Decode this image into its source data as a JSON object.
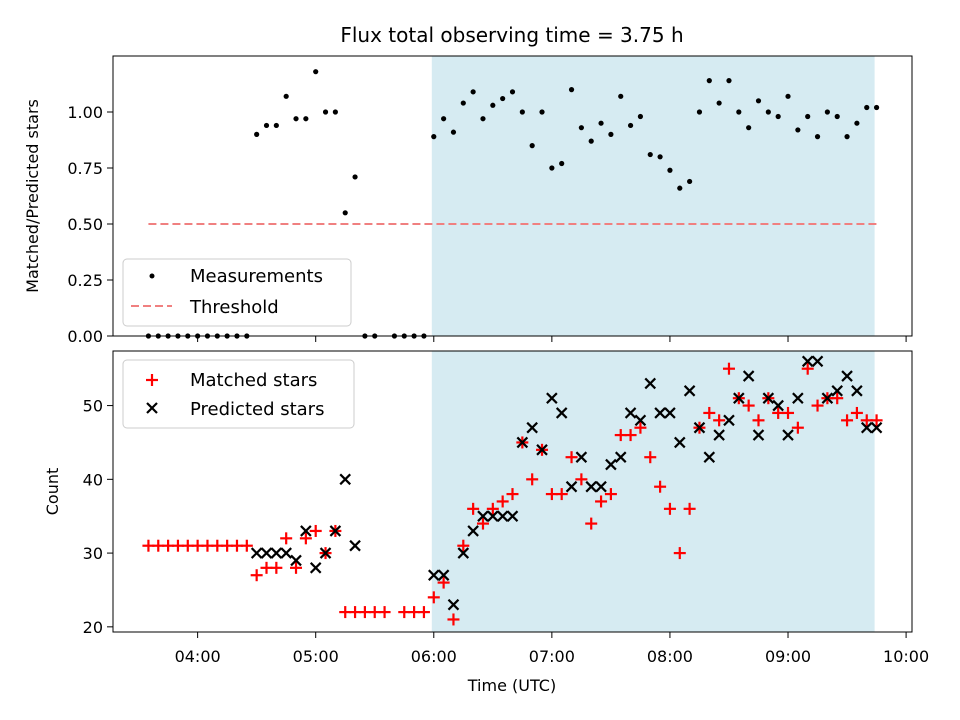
{
  "colors": {
    "measurement": "#000000",
    "threshold": "#f08080",
    "matched": "#ff0000",
    "predicted": "#000000",
    "shade": "#add8e6"
  },
  "chart_data": [
    {
      "type": "scatter",
      "title": "Flux total observing time = 3.75 h",
      "ylabel": "Matched/Predicted stars",
      "xlim": [
        "03:17",
        "10:03"
      ],
      "ylim": [
        0,
        1.25
      ],
      "yticks": [
        "0.00",
        "0.25",
        "0.50",
        "0.75",
        "1.00"
      ],
      "shaded_region": [
        "05:59",
        "09:44"
      ],
      "legend_position": "lower-left",
      "legend": [
        "Measurements",
        "Threshold"
      ],
      "threshold": {
        "value": 0.5,
        "x_range": [
          "03:35",
          "09:45"
        ]
      },
      "measurements": [
        [
          "03:35",
          0
        ],
        [
          "03:40",
          0
        ],
        [
          "03:45",
          0
        ],
        [
          "03:50",
          0
        ],
        [
          "03:55",
          0
        ],
        [
          "04:00",
          0
        ],
        [
          "04:05",
          0
        ],
        [
          "04:10",
          0
        ],
        [
          "04:15",
          0
        ],
        [
          "04:20",
          0
        ],
        [
          "04:25",
          0
        ],
        [
          "04:30",
          0.9
        ],
        [
          "04:35",
          0.94
        ],
        [
          "04:40",
          0.94
        ],
        [
          "04:45",
          1.07
        ],
        [
          "04:50",
          0.97
        ],
        [
          "04:55",
          0.97
        ],
        [
          "05:00",
          1.18
        ],
        [
          "05:05",
          1.0
        ],
        [
          "05:10",
          1.0
        ],
        [
          "05:15",
          0.55
        ],
        [
          "05:20",
          0.71
        ],
        [
          "05:25",
          0
        ],
        [
          "05:30",
          0
        ],
        [
          "05:40",
          0
        ],
        [
          "05:45",
          0
        ],
        [
          "05:50",
          0
        ],
        [
          "05:55",
          0
        ],
        [
          "06:00",
          0.89
        ],
        [
          "06:05",
          0.97
        ],
        [
          "06:10",
          0.91
        ],
        [
          "06:15",
          1.04
        ],
        [
          "06:20",
          1.09
        ],
        [
          "06:25",
          0.97
        ],
        [
          "06:30",
          1.03
        ],
        [
          "06:35",
          1.06
        ],
        [
          "06:40",
          1.09
        ],
        [
          "06:45",
          1.0
        ],
        [
          "06:50",
          0.85
        ],
        [
          "06:55",
          1.0
        ],
        [
          "07:00",
          0.75
        ],
        [
          "07:05",
          0.77
        ],
        [
          "07:10",
          1.1
        ],
        [
          "07:15",
          0.93
        ],
        [
          "07:20",
          0.87
        ],
        [
          "07:25",
          0.95
        ],
        [
          "07:30",
          0.9
        ],
        [
          "07:35",
          1.07
        ],
        [
          "07:40",
          0.94
        ],
        [
          "07:45",
          0.98
        ],
        [
          "07:50",
          0.81
        ],
        [
          "07:55",
          0.8
        ],
        [
          "08:00",
          0.74
        ],
        [
          "08:05",
          0.66
        ],
        [
          "08:10",
          0.69
        ],
        [
          "08:15",
          1.0
        ],
        [
          "08:20",
          1.14
        ],
        [
          "08:25",
          1.04
        ],
        [
          "08:30",
          1.14
        ],
        [
          "08:35",
          1.0
        ],
        [
          "08:40",
          0.93
        ],
        [
          "08:45",
          1.05
        ],
        [
          "08:50",
          1.0
        ],
        [
          "08:55",
          0.98
        ],
        [
          "09:00",
          1.07
        ],
        [
          "09:05",
          0.92
        ],
        [
          "09:10",
          0.98
        ],
        [
          "09:15",
          0.89
        ],
        [
          "09:20",
          1.0
        ],
        [
          "09:25",
          0.98
        ],
        [
          "09:30",
          0.89
        ],
        [
          "09:35",
          0.95
        ],
        [
          "09:40",
          1.02
        ],
        [
          "09:45",
          1.02
        ]
      ]
    },
    {
      "type": "scatter",
      "xlabel": "Time (UTC)",
      "ylabel": "Count",
      "xlim": [
        "03:17",
        "10:03"
      ],
      "ylim": [
        19.3,
        57.4
      ],
      "yticks": [
        "20",
        "30",
        "40",
        "50"
      ],
      "xticks": [
        "04:00",
        "05:00",
        "06:00",
        "07:00",
        "08:00",
        "09:00",
        "10:00"
      ],
      "shaded_region": [
        "05:59",
        "09:44"
      ],
      "legend_position": "top-left",
      "legend": [
        "Matched stars",
        "Predicted stars"
      ],
      "matched": [
        [
          "03:35",
          31
        ],
        [
          "03:40",
          31
        ],
        [
          "03:45",
          31
        ],
        [
          "03:50",
          31
        ],
        [
          "03:55",
          31
        ],
        [
          "04:00",
          31
        ],
        [
          "04:05",
          31
        ],
        [
          "04:10",
          31
        ],
        [
          "04:15",
          31
        ],
        [
          "04:20",
          31
        ],
        [
          "04:25",
          31
        ],
        [
          "04:30",
          27
        ],
        [
          "04:35",
          28
        ],
        [
          "04:40",
          28
        ],
        [
          "04:45",
          32
        ],
        [
          "04:50",
          28
        ],
        [
          "04:55",
          32
        ],
        [
          "05:00",
          33
        ],
        [
          "05:05",
          30
        ],
        [
          "05:10",
          33
        ],
        [
          "05:15",
          22
        ],
        [
          "05:20",
          22
        ],
        [
          "05:25",
          22
        ],
        [
          "05:30",
          22
        ],
        [
          "05:35",
          22
        ],
        [
          "05:45",
          22
        ],
        [
          "05:50",
          22
        ],
        [
          "05:55",
          22
        ],
        [
          "06:00",
          24
        ],
        [
          "06:05",
          26
        ],
        [
          "06:10",
          21
        ],
        [
          "06:15",
          31
        ],
        [
          "06:20",
          36
        ],
        [
          "06:25",
          34
        ],
        [
          "06:30",
          36
        ],
        [
          "06:35",
          37
        ],
        [
          "06:40",
          38
        ],
        [
          "06:45",
          45
        ],
        [
          "06:50",
          40
        ],
        [
          "06:55",
          44
        ],
        [
          "07:00",
          38
        ],
        [
          "07:05",
          38
        ],
        [
          "07:10",
          43
        ],
        [
          "07:15",
          40
        ],
        [
          "07:20",
          34
        ],
        [
          "07:25",
          37
        ],
        [
          "07:30",
          38
        ],
        [
          "07:35",
          46
        ],
        [
          "07:40",
          46
        ],
        [
          "07:45",
          47
        ],
        [
          "07:50",
          43
        ],
        [
          "07:55",
          39
        ],
        [
          "08:00",
          36
        ],
        [
          "08:05",
          30
        ],
        [
          "08:10",
          36
        ],
        [
          "08:15",
          47
        ],
        [
          "08:20",
          49
        ],
        [
          "08:25",
          48
        ],
        [
          "08:30",
          55
        ],
        [
          "08:35",
          51
        ],
        [
          "08:40",
          50
        ],
        [
          "08:45",
          48
        ],
        [
          "08:50",
          51
        ],
        [
          "08:55",
          49
        ],
        [
          "09:00",
          49
        ],
        [
          "09:05",
          47
        ],
        [
          "09:10",
          55
        ],
        [
          "09:15",
          50
        ],
        [
          "09:20",
          51
        ],
        [
          "09:25",
          51
        ],
        [
          "09:30",
          48
        ],
        [
          "09:35",
          49
        ],
        [
          "09:40",
          48
        ],
        [
          "09:45",
          48
        ]
      ],
      "predicted": [
        [
          "04:30",
          30
        ],
        [
          "04:35",
          30
        ],
        [
          "04:40",
          30
        ],
        [
          "04:45",
          30
        ],
        [
          "04:50",
          29
        ],
        [
          "04:55",
          33
        ],
        [
          "05:00",
          28
        ],
        [
          "05:05",
          30
        ],
        [
          "05:10",
          33
        ],
        [
          "05:15",
          40
        ],
        [
          "05:20",
          31
        ],
        [
          "06:00",
          27
        ],
        [
          "06:05",
          27
        ],
        [
          "06:10",
          23
        ],
        [
          "06:15",
          30
        ],
        [
          "06:20",
          33
        ],
        [
          "06:25",
          35
        ],
        [
          "06:30",
          35
        ],
        [
          "06:35",
          35
        ],
        [
          "06:40",
          35
        ],
        [
          "06:45",
          45
        ],
        [
          "06:50",
          47
        ],
        [
          "06:55",
          44
        ],
        [
          "07:00",
          51
        ],
        [
          "07:05",
          49
        ],
        [
          "07:10",
          39
        ],
        [
          "07:15",
          43
        ],
        [
          "07:20",
          39
        ],
        [
          "07:25",
          39
        ],
        [
          "07:30",
          42
        ],
        [
          "07:35",
          43
        ],
        [
          "07:40",
          49
        ],
        [
          "07:45",
          48
        ],
        [
          "07:50",
          53
        ],
        [
          "07:55",
          49
        ],
        [
          "08:00",
          49
        ],
        [
          "08:05",
          45
        ],
        [
          "08:10",
          52
        ],
        [
          "08:15",
          47
        ],
        [
          "08:20",
          43
        ],
        [
          "08:25",
          46
        ],
        [
          "08:30",
          48
        ],
        [
          "08:35",
          51
        ],
        [
          "08:40",
          54
        ],
        [
          "08:45",
          46
        ],
        [
          "08:50",
          51
        ],
        [
          "08:55",
          50
        ],
        [
          "09:00",
          46
        ],
        [
          "09:05",
          51
        ],
        [
          "09:10",
          56
        ],
        [
          "09:15",
          56
        ],
        [
          "09:20",
          51
        ],
        [
          "09:25",
          52
        ],
        [
          "09:30",
          54
        ],
        [
          "09:35",
          52
        ],
        [
          "09:40",
          47
        ],
        [
          "09:45",
          47
        ]
      ]
    }
  ]
}
